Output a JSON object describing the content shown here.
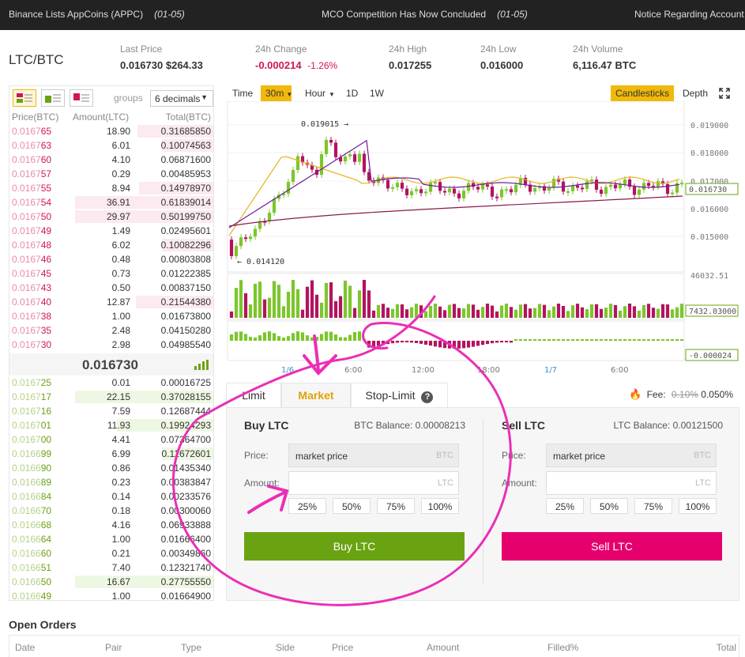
{
  "announcements": [
    {
      "text": "Binance Lists AppCoins (APPC)",
      "date": "(01-05)"
    },
    {
      "text": "MCO Competition Has Now Concluded",
      "date": "(01-05)"
    },
    {
      "text": "Notice Regarding Account",
      "date": ""
    }
  ],
  "pair": "LTC/BTC",
  "stats": {
    "last_price": {
      "label": "Last Price",
      "value": "0.016730",
      "usd": "$264.33"
    },
    "change": {
      "label": "24h Change",
      "value": "-0.000214",
      "pct": "-1.26%"
    },
    "high": {
      "label": "24h High",
      "value": "0.017255"
    },
    "low": {
      "label": "24h Low",
      "value": "0.016000"
    },
    "volume": {
      "label": "24h Volume",
      "value": "6,116.47 BTC"
    }
  },
  "orderbook": {
    "groups_label": "groups",
    "decimals": "6 decimals",
    "headers": {
      "price": "Price(BTC)",
      "amount": "Amount(LTC)",
      "total": "Total(BTC)"
    },
    "asks": [
      {
        "p1": "0.0167",
        "p2": "65",
        "a": "18.90",
        "t": "0.31685850",
        "depth": 0.55
      },
      {
        "p1": "0.0167",
        "p2": "63",
        "a": "6.01",
        "t": "0.10074563",
        "depth": 0.37
      },
      {
        "p1": "0.0167",
        "p2": "60",
        "a": "4.10",
        "t": "0.06871600",
        "depth": 0
      },
      {
        "p1": "0.0167",
        "p2": "57",
        "a": "0.29",
        "t": "0.00485953",
        "depth": 0
      },
      {
        "p1": "0.0167",
        "p2": "55",
        "a": "8.94",
        "t": "0.14978970",
        "depth": 0.54
      },
      {
        "p1": "0.0167",
        "p2": "54",
        "a": "36.91",
        "t": "0.61839014",
        "depth": 1
      },
      {
        "p1": "0.0167",
        "p2": "50",
        "a": "29.97",
        "t": "0.50199750",
        "depth": 1
      },
      {
        "p1": "0.0167",
        "p2": "49",
        "a": "1.49",
        "t": "0.02495601",
        "depth": 0
      },
      {
        "p1": "0.0167",
        "p2": "48",
        "a": "6.02",
        "t": "0.10082296",
        "depth": 0.37
      },
      {
        "p1": "0.0167",
        "p2": "46",
        "a": "0.48",
        "t": "0.00803808",
        "depth": 0
      },
      {
        "p1": "0.0167",
        "p2": "45",
        "a": "0.73",
        "t": "0.01222385",
        "depth": 0
      },
      {
        "p1": "0.0167",
        "p2": "43",
        "a": "0.50",
        "t": "0.00837150",
        "depth": 0
      },
      {
        "p1": "0.0167",
        "p2": "40",
        "a": "12.87",
        "t": "0.21544380",
        "depth": 0.56
      },
      {
        "p1": "0.0167",
        "p2": "38",
        "a": "1.00",
        "t": "0.01673800",
        "depth": 0
      },
      {
        "p1": "0.0167",
        "p2": "35",
        "a": "2.48",
        "t": "0.04150280",
        "depth": 0
      },
      {
        "p1": "0.0167",
        "p2": "30",
        "a": "2.98",
        "t": "0.04985540",
        "depth": 0
      }
    ],
    "mid_price": "0.016730",
    "bids": [
      {
        "p1": "0.0167",
        "p2": "25",
        "a": "0.01",
        "t": "0.00016725",
        "depth": 0
      },
      {
        "p1": "0.0167",
        "p2": "17",
        "a": "22.15",
        "t": "0.37028155",
        "depth": 1
      },
      {
        "p1": "0.0167",
        "p2": "16",
        "a": "7.59",
        "t": "0.12687444",
        "depth": 0
      },
      {
        "p1": "0.0167",
        "p2": "01",
        "a": "11.93",
        "t": "0.19924293",
        "depth": 0.7
      },
      {
        "p1": "0.0167",
        "p2": "00",
        "a": "4.41",
        "t": "0.07364700",
        "depth": 0
      },
      {
        "p1": "0.0166",
        "p2": "99",
        "a": "6.99",
        "t": "0.11672601",
        "depth": 0.37
      },
      {
        "p1": "0.0166",
        "p2": "90",
        "a": "0.86",
        "t": "0.01435340",
        "depth": 0
      },
      {
        "p1": "0.0166",
        "p2": "89",
        "a": "0.23",
        "t": "0.00383847",
        "depth": 0
      },
      {
        "p1": "0.0166",
        "p2": "84",
        "a": "0.14",
        "t": "0.00233576",
        "depth": 0
      },
      {
        "p1": "0.0166",
        "p2": "70",
        "a": "0.18",
        "t": "0.00300060",
        "depth": 0
      },
      {
        "p1": "0.0166",
        "p2": "68",
        "a": "4.16",
        "t": "0.06933888",
        "depth": 0
      },
      {
        "p1": "0.0166",
        "p2": "64",
        "a": "1.00",
        "t": "0.01666400",
        "depth": 0
      },
      {
        "p1": "0.0166",
        "p2": "60",
        "a": "0.21",
        "t": "0.00349860",
        "depth": 0
      },
      {
        "p1": "0.0166",
        "p2": "51",
        "a": "7.40",
        "t": "0.12321740",
        "depth": 0
      },
      {
        "p1": "0.0166",
        "p2": "50",
        "a": "16.67",
        "t": "0.27755550",
        "depth": 1
      },
      {
        "p1": "0.0166",
        "p2": "49",
        "a": "1.00",
        "t": "0.01664900",
        "depth": 0
      }
    ]
  },
  "chart_toolbar": {
    "time": "Time",
    "interval": "30m",
    "hour": "Hour",
    "d1": "1D",
    "w1": "1W",
    "candles": "Candlesticks",
    "depth": "Depth"
  },
  "chart": {
    "price_ticks": [
      "0.019000",
      "0.018000",
      "0.017000",
      "0.016000",
      "0.015000"
    ],
    "last_tag": "0.016730",
    "high_mark": "0.019015",
    "low_mark": "0.014120",
    "volume_max": "46032.51",
    "volume_tag": "7432.03000",
    "macd_tag": "-0.000024",
    "time_labels": [
      "1/6",
      "6:00",
      "12:00",
      "18:00",
      "1/7",
      "6:00"
    ],
    "colors": {
      "up": "#7cc62b",
      "down": "#b3135e",
      "ma_short": "#e6b523",
      "ma_long": "#6a1b9a"
    }
  },
  "trade": {
    "tabs": [
      "Limit",
      "Market",
      "Stop-Limit"
    ],
    "help_icon": "?",
    "fee_label": "Fee:",
    "fee_old": "0.10%",
    "fee_new": "0.050%",
    "buy": {
      "title": "Buy LTC",
      "balance": "BTC Balance: 0.00008213",
      "price_label": "Price:",
      "price_value": "market price",
      "price_unit": "BTC",
      "amount_label": "Amount:",
      "amount_unit": "LTC",
      "button": "Buy LTC",
      "color": "#6aa312"
    },
    "sell": {
      "title": "Sell LTC",
      "balance": "LTC Balance: 0.00121500",
      "price_label": "Price:",
      "price_value": "market price",
      "price_unit": "BTC",
      "amount_label": "Amount:",
      "amount_unit": "LTC",
      "button": "Sell LTC",
      "color": "#e5006d"
    },
    "percents": [
      "25%",
      "50%",
      "75%",
      "100%"
    ]
  },
  "open_orders": {
    "title": "Open Orders",
    "columns": [
      "Date",
      "Pair",
      "Type",
      "Side",
      "Price",
      "Amount",
      "Filled%",
      "Total"
    ]
  }
}
